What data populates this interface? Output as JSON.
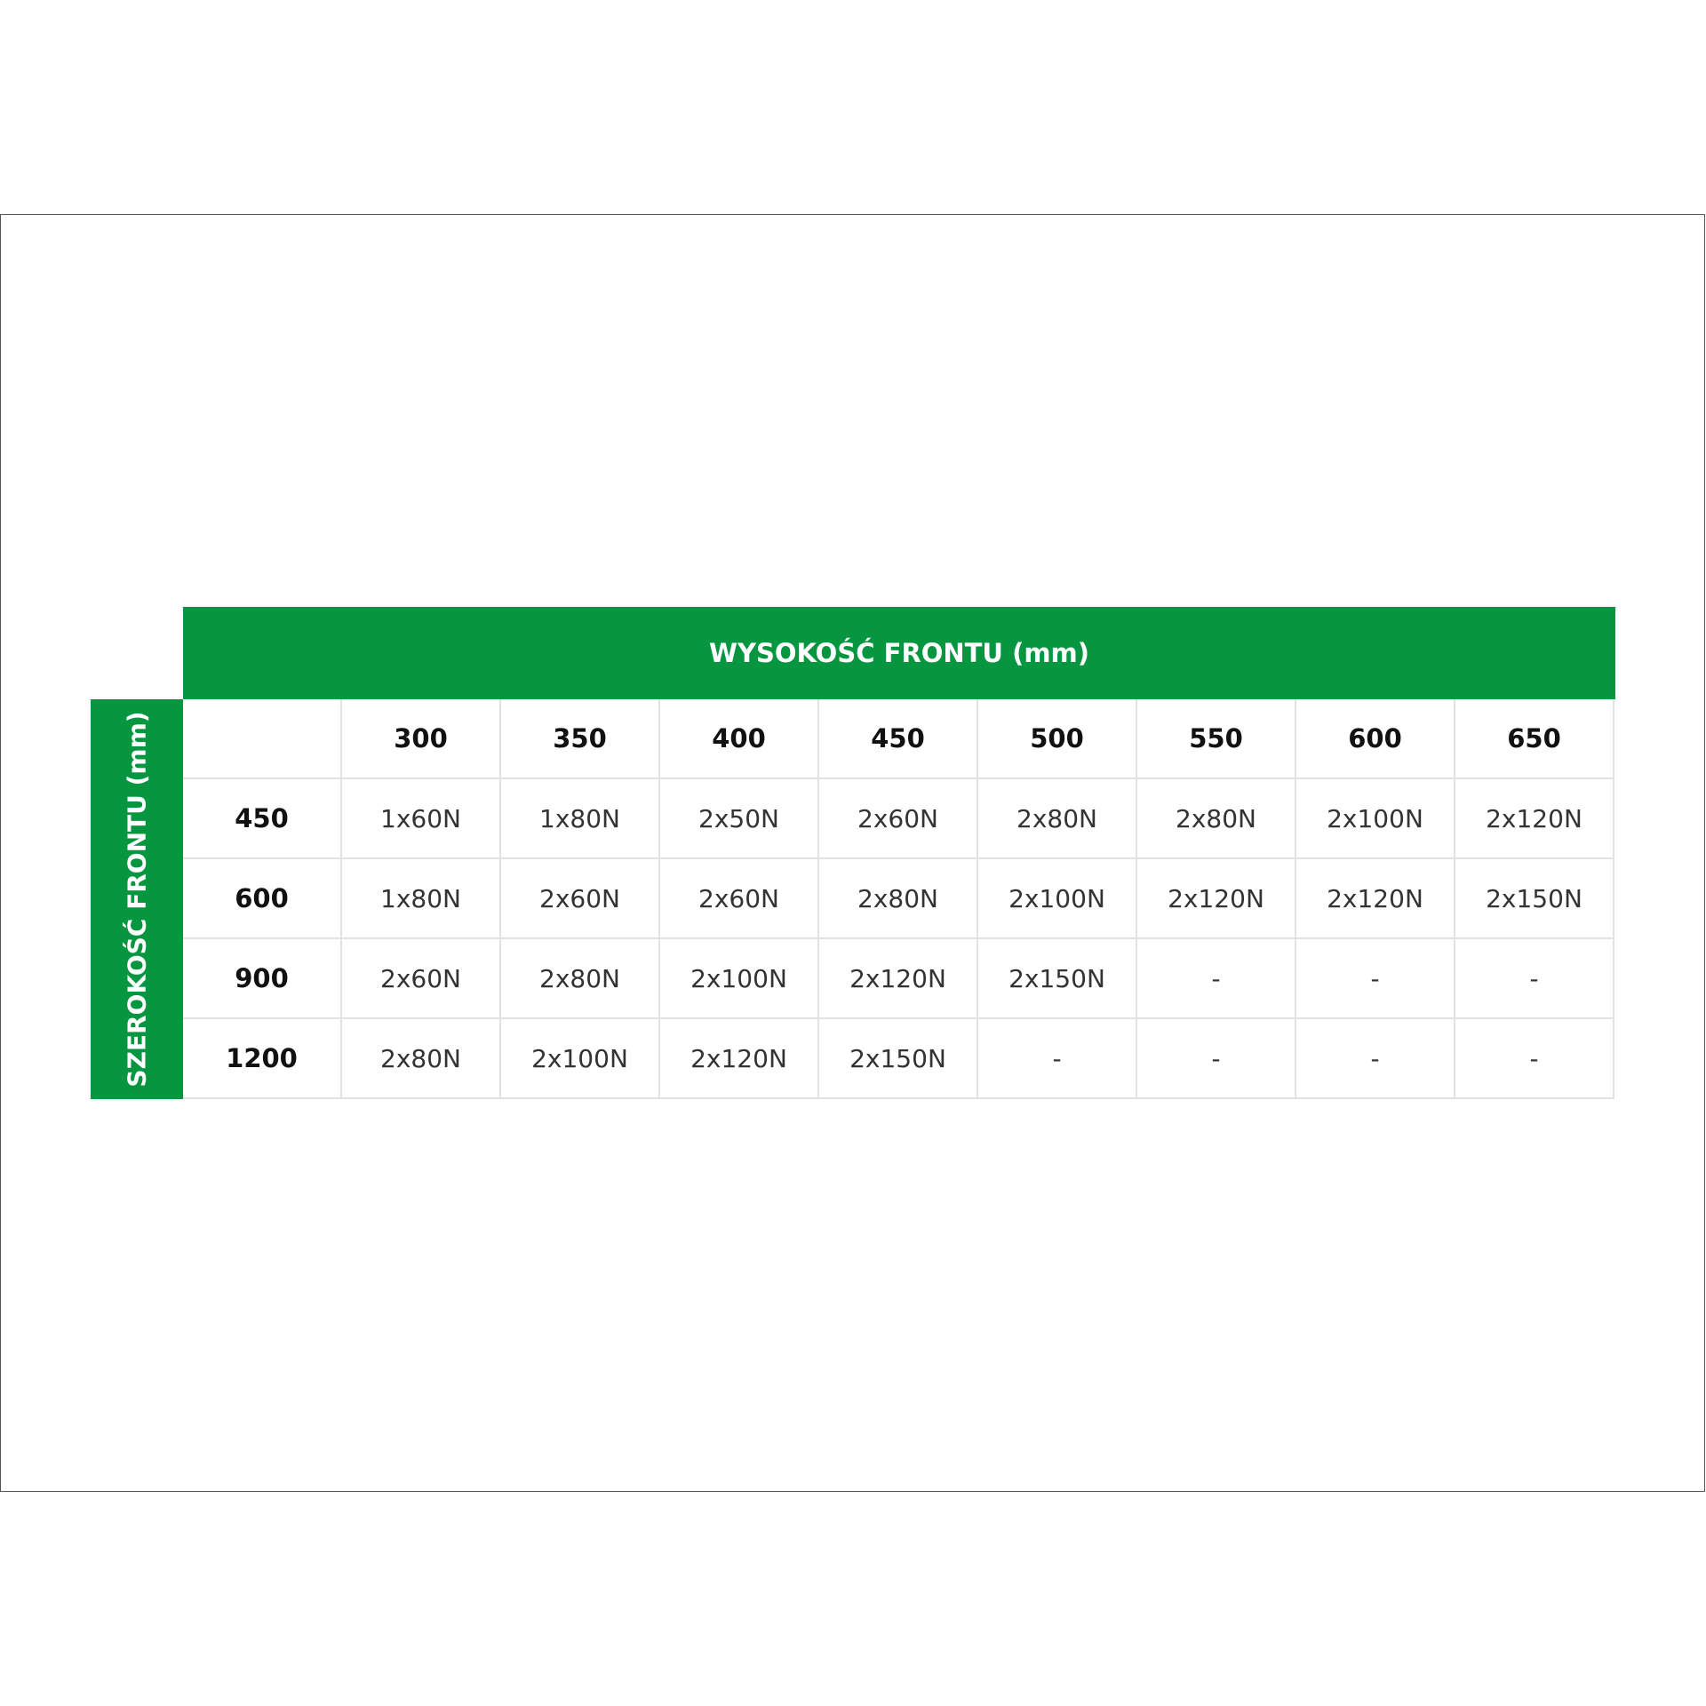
{
  "header": {
    "title": "WYSOKOŚĆ FRONTU (mm)"
  },
  "side": {
    "title": "SZEROKOŚĆ FRONTU (mm)"
  },
  "table": {
    "columns": [
      "300",
      "350",
      "400",
      "450",
      "500",
      "550",
      "600",
      "650"
    ],
    "rows": [
      {
        "label": "450",
        "cells": [
          "1x60N",
          "1x80N",
          "2x50N",
          "2x60N",
          "2x80N",
          "2x80N",
          "2x100N",
          "2x120N"
        ]
      },
      {
        "label": "600",
        "cells": [
          "1x80N",
          "2x60N",
          "2x60N",
          "2x80N",
          "2x100N",
          "2x120N",
          "2x120N",
          "2x150N"
        ]
      },
      {
        "label": "900",
        "cells": [
          "2x60N",
          "2x80N",
          "2x100N",
          "2x120N",
          "2x150N",
          "-",
          "-",
          "-"
        ]
      },
      {
        "label": "1200",
        "cells": [
          "2x80N",
          "2x100N",
          "2x120N",
          "2x150N",
          "-",
          "-",
          "-",
          "-"
        ]
      }
    ]
  }
}
